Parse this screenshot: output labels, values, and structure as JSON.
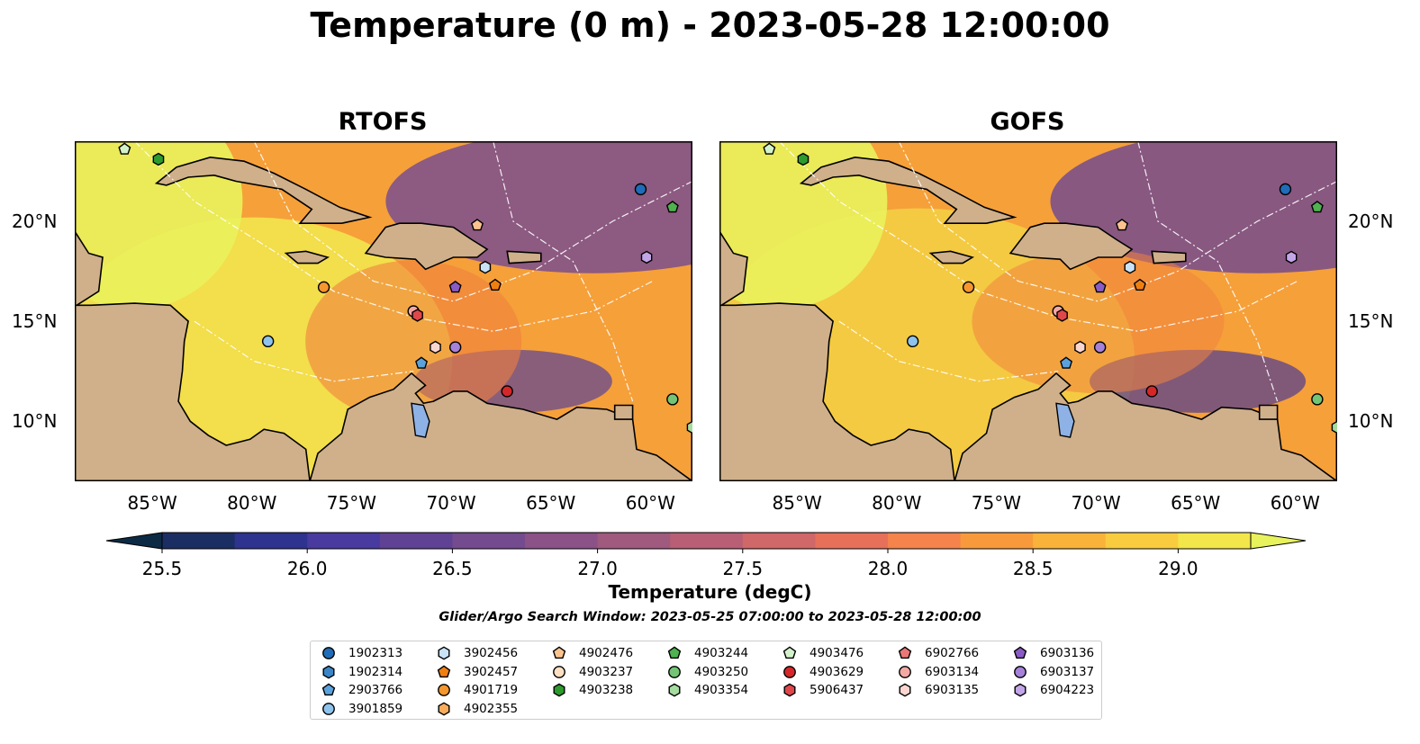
{
  "title": "Temperature (0 m) - 2023-05-28 12:00:00",
  "panels": [
    {
      "title": "RTOFS"
    },
    {
      "title": "GOFS"
    }
  ],
  "map": {
    "lon_range": [
      -89,
      -58
    ],
    "lat_range": [
      7,
      24
    ],
    "x_ticks": [
      "85°W",
      "80°W",
      "75°W",
      "70°W",
      "65°W",
      "60°W"
    ],
    "y_ticks": [
      "20°N",
      "15°N",
      "10°N"
    ],
    "land_color": "#cfb08a",
    "lake_color": "#8eb2e6",
    "gridline_color": "#ffffff"
  },
  "colorbar": {
    "label": "Temperature (degC)",
    "ticks": [
      "25.5",
      "26.0",
      "26.5",
      "27.0",
      "27.5",
      "28.0",
      "28.5",
      "29.0"
    ],
    "range": [
      25.5,
      29.25
    ],
    "extend": "both",
    "colors": [
      "#0c2a44",
      "#1b2e63",
      "#2e338f",
      "#483a9e",
      "#5f4294",
      "#744b8e",
      "#8a5286",
      "#a05a7e",
      "#b85f75",
      "#d06768",
      "#e6705a",
      "#f4834c",
      "#f89a3c",
      "#f9b33a",
      "#f8cc3e",
      "#f2e64a",
      "#e8f25c"
    ]
  },
  "search_window": "Glider/Argo Search Window: 2023-05-25 07:00:00 to 2023-05-28 12:00:00",
  "legend": {
    "columns": [
      [
        {
          "label": "1902313",
          "shape": "circle",
          "color": "#1f6cb8"
        },
        {
          "label": "1902314",
          "shape": "hexagon",
          "color": "#3a85c8"
        },
        {
          "label": "2903766",
          "shape": "pentagon",
          "color": "#5ba2dc"
        },
        {
          "label": "3901859",
          "shape": "circle",
          "color": "#8ec3ec"
        }
      ],
      [
        {
          "label": "3902456",
          "shape": "hexagon",
          "color": "#c9e2f5"
        },
        {
          "label": "3902457",
          "shape": "pentagon",
          "color": "#f07f12"
        },
        {
          "label": "4901719",
          "shape": "circle",
          "color": "#f5962e"
        },
        {
          "label": "4902355",
          "shape": "hexagon",
          "color": "#f8ac5c"
        }
      ],
      [
        {
          "label": "4902476",
          "shape": "pentagon",
          "color": "#fbc38e"
        },
        {
          "label": "4903237",
          "shape": "circle",
          "color": "#fde0c2"
        },
        {
          "label": "4903238",
          "shape": "hexagon",
          "color": "#2c9a2c"
        }
      ],
      [
        {
          "label": "4903244",
          "shape": "pentagon",
          "color": "#4fb14f"
        },
        {
          "label": "4903250",
          "shape": "circle",
          "color": "#74c476"
        },
        {
          "label": "4903354",
          "shape": "hexagon",
          "color": "#a5dca0"
        }
      ],
      [
        {
          "label": "4903476",
          "shape": "pentagon",
          "color": "#d3f2cb"
        },
        {
          "label": "4903629",
          "shape": "circle",
          "color": "#d62728"
        },
        {
          "label": "5906437",
          "shape": "hexagon",
          "color": "#e0474a"
        }
      ],
      [
        {
          "label": "6902766",
          "shape": "pentagon",
          "color": "#ea7777"
        },
        {
          "label": "6903134",
          "shape": "circle",
          "color": "#f4a8a3"
        },
        {
          "label": "6903135",
          "shape": "hexagon",
          "color": "#fbd6d1"
        }
      ],
      [
        {
          "label": "6903136",
          "shape": "pentagon",
          "color": "#8a5bc4"
        },
        {
          "label": "6903137",
          "shape": "circle",
          "color": "#a681d8"
        },
        {
          "label": "6904223",
          "shape": "hexagon",
          "color": "#c3a6e8"
        }
      ]
    ]
  },
  "floats": [
    {
      "id": "4903476",
      "lon": -86.5,
      "lat": 23.6
    },
    {
      "id": "4903238",
      "lon": -84.8,
      "lat": 23.1
    },
    {
      "id": "1902313",
      "lon": -60.6,
      "lat": 21.6
    },
    {
      "id": "4903244",
      "lon": -59.0,
      "lat": 20.7
    },
    {
      "id": "4902476",
      "lon": -68.8,
      "lat": 19.8
    },
    {
      "id": "6904223",
      "lon": -60.3,
      "lat": 18.2
    },
    {
      "id": "3902456",
      "lon": -68.4,
      "lat": 17.7
    },
    {
      "id": "3902457",
      "lon": -67.9,
      "lat": 16.8
    },
    {
      "id": "6903136",
      "lon": -69.9,
      "lat": 16.7
    },
    {
      "id": "4901719",
      "lon": -76.5,
      "lat": 16.7
    },
    {
      "id": "6903134",
      "lon": -72.0,
      "lat": 15.5
    },
    {
      "id": "5906437",
      "lon": -71.8,
      "lat": 15.3
    },
    {
      "id": "3901859",
      "lon": -79.3,
      "lat": 14.0
    },
    {
      "id": "6903135",
      "lon": -70.9,
      "lat": 13.7
    },
    {
      "id": "6903137",
      "lon": -69.9,
      "lat": 13.7
    },
    {
      "id": "2903766",
      "lon": -71.6,
      "lat": 12.9
    },
    {
      "id": "4903629",
      "lon": -67.3,
      "lat": 11.5
    },
    {
      "id": "4903250",
      "lon": -59.0,
      "lat": 11.1
    },
    {
      "id": "4903354",
      "lon": -58.0,
      "lat": 9.7
    }
  ]
}
